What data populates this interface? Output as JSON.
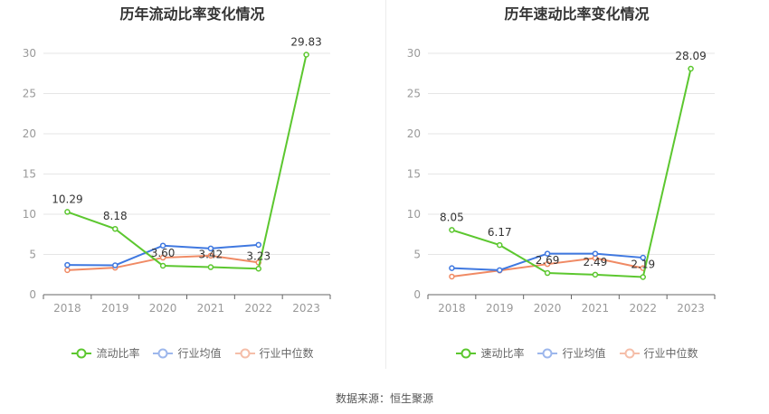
{
  "charts": [
    {
      "title": "历年流动比率变化情况",
      "legend": [
        "流动比率",
        "行业均值",
        "行业中位数"
      ],
      "value_labels": [
        "10.29",
        "8.18",
        "3.60",
        "3.42",
        "3.23",
        "29.83"
      ]
    },
    {
      "title": "历年速动比率变化情况",
      "legend": [
        "速动比率",
        "行业均值",
        "行业中位数"
      ],
      "value_labels": [
        "8.05",
        "6.17",
        "2.69",
        "2.49",
        "2.19",
        "28.09"
      ]
    }
  ],
  "source": "数据来源：恒生聚源",
  "colors": {
    "main": "#5cc72f",
    "mean": "#3f78e0",
    "median": "#f08a64",
    "grid": "#e6e6e6",
    "tick": "#999999"
  },
  "chart_data": [
    {
      "type": "line",
      "title": "历年流动比率变化情况",
      "categories": [
        "2018",
        "2019",
        "2020",
        "2021",
        "2022",
        "2023"
      ],
      "ylim": [
        0,
        30
      ],
      "yticks": [
        0,
        5,
        10,
        15,
        20,
        25,
        30
      ],
      "grid": true,
      "legend_position": "bottom",
      "series": [
        {
          "name": "流动比率",
          "color": "#5cc72f",
          "values": [
            10.29,
            8.18,
            3.6,
            3.42,
            3.23,
            29.83
          ]
        },
        {
          "name": "行业均值",
          "color": "#3f78e0",
          "values": [
            3.7,
            3.65,
            6.1,
            5.75,
            6.2,
            null
          ]
        },
        {
          "name": "行业中位数",
          "color": "#f08a64",
          "values": [
            3.05,
            3.35,
            4.6,
            4.85,
            4.0,
            null
          ]
        }
      ]
    },
    {
      "type": "line",
      "title": "历年速动比率变化情况",
      "categories": [
        "2018",
        "2019",
        "2020",
        "2021",
        "2022",
        "2023"
      ],
      "ylim": [
        0,
        30
      ],
      "yticks": [
        0,
        5,
        10,
        15,
        20,
        25,
        30
      ],
      "grid": true,
      "legend_position": "bottom",
      "series": [
        {
          "name": "速动比率",
          "color": "#5cc72f",
          "values": [
            8.05,
            6.17,
            2.69,
            2.49,
            2.19,
            28.09
          ]
        },
        {
          "name": "行业均值",
          "color": "#3f78e0",
          "values": [
            3.3,
            3.05,
            5.1,
            5.1,
            4.6,
            null
          ]
        },
        {
          "name": "行业中位数",
          "color": "#f08a64",
          "values": [
            2.25,
            3.0,
            3.8,
            4.55,
            3.3,
            null
          ]
        }
      ]
    }
  ]
}
